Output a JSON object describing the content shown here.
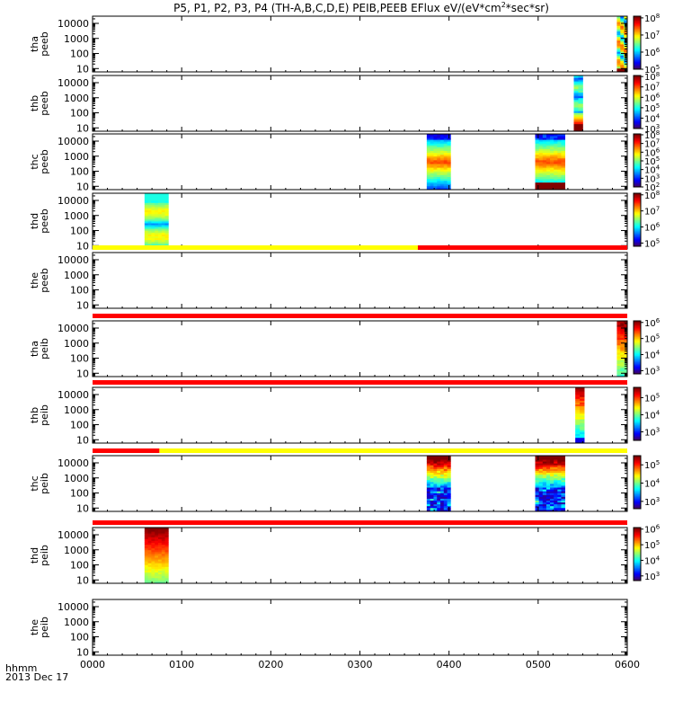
{
  "chart_data": {
    "type": "heatmap",
    "title": "P5, P1, P2, P3, P4 (TH-A,B,C,D,E) PEIB,PEEB EFlux eV/(eV*cm",
    "title_sup": "2",
    "title_tail": "*sec*sr)",
    "xaxis": {
      "label_line1": "hhmm",
      "label_line2": "2013 Dec 17",
      "ticks": [
        "0000",
        "0100",
        "0200",
        "0300",
        "0400",
        "0500",
        "0600"
      ],
      "range_minutes": [
        0,
        360
      ]
    },
    "yaxis": {
      "scale": "log",
      "ticks": [
        "10",
        "100",
        "1000",
        "10000"
      ],
      "range": [
        6,
        30000
      ]
    },
    "panels": [
      {
        "label1": "tha",
        "label2": "peeb",
        "cbar": [
          "10",
          "10",
          "10",
          "10"
        ],
        "cbar_exp": [
          "8",
          "7",
          "6",
          "5"
        ],
        "cbar_range": [
          5,
          8.1
        ],
        "blocks": [
          {
            "t0": 353,
            "t1": 360,
            "style": "peeb_full"
          }
        ]
      },
      {
        "label1": "thb",
        "label2": "peeb",
        "cbar": [
          "10",
          "10",
          "10",
          "10",
          "10",
          "10"
        ],
        "cbar_exp": [
          "8",
          "7",
          "6",
          "5",
          "4",
          "3"
        ],
        "cbar_range": [
          3,
          8.1
        ],
        "blocks": [
          {
            "t0": 324,
            "t1": 330,
            "style": "peeb_b"
          }
        ]
      },
      {
        "label1": "thc",
        "label2": "peeb",
        "cbar": [
          "10",
          "10",
          "10",
          "10",
          "10",
          "10",
          "10"
        ],
        "cbar_exp": [
          "8",
          "7",
          "6",
          "5",
          "4",
          "3",
          "2"
        ],
        "cbar_range": [
          2,
          8.1
        ],
        "blocks": [
          {
            "t0": 225,
            "t1": 241,
            "style": "peeb_c"
          },
          {
            "t0": 298,
            "t1": 318,
            "style": "peeb_c2"
          }
        ]
      },
      {
        "label1": "thd",
        "label2": "peeb",
        "cbar": [
          "10",
          "10",
          "10",
          "10"
        ],
        "cbar_exp": [
          "8",
          "7",
          "6",
          "5"
        ],
        "cbar_range": [
          4.8,
          8.1
        ],
        "blocks": [
          {
            "t0": 35,
            "t1": 51,
            "style": "peeb_d"
          }
        ]
      },
      {
        "label1": "the",
        "label2": "peeb",
        "cbar": [],
        "cbar_exp": [],
        "cbar_range": [
          0,
          1
        ],
        "blocks": []
      },
      {
        "label1": "tha",
        "label2": "peib",
        "cbar": [
          "10",
          "10",
          "10",
          "10"
        ],
        "cbar_exp": [
          "6",
          "5",
          "4",
          "3"
        ],
        "cbar_range": [
          2.8,
          6.1
        ],
        "blocks": [
          {
            "t0": 353,
            "t1": 360,
            "style": "peib_a"
          }
        ]
      },
      {
        "label1": "thb",
        "label2": "peib",
        "cbar": [
          "10",
          "10",
          "10"
        ],
        "cbar_exp": [
          "5",
          "4",
          "3"
        ],
        "cbar_range": [
          2.5,
          5.6
        ],
        "blocks": [
          {
            "t0": 325,
            "t1": 331,
            "style": "peib_b"
          }
        ]
      },
      {
        "label1": "thc",
        "label2": "peib",
        "cbar": [
          "10",
          "10",
          "10"
        ],
        "cbar_exp": [
          "5",
          "4",
          "3"
        ],
        "cbar_range": [
          2.6,
          5.5
        ],
        "blocks": [
          {
            "t0": 225,
            "t1": 241,
            "style": "peib_c"
          },
          {
            "t0": 298,
            "t1": 318,
            "style": "peib_c"
          }
        ]
      },
      {
        "label1": "thd",
        "label2": "peib",
        "cbar": [
          "10",
          "10",
          "10",
          "10"
        ],
        "cbar_exp": [
          "6",
          "5",
          "4",
          "3"
        ],
        "cbar_range": [
          2.7,
          6.1
        ],
        "blocks": [
          {
            "t0": 35,
            "t1": 51,
            "style": "peib_d"
          }
        ]
      },
      {
        "label1": "the",
        "label2": "peib",
        "cbar": [],
        "cbar_exp": [],
        "cbar_range": [
          0,
          1
        ],
        "blocks": []
      }
    ],
    "mode_bars": [
      {
        "after_panel": 4,
        "segments": [
          {
            "t0": 0,
            "t1": 219,
            "color": "#ffff00"
          },
          {
            "t0": 219,
            "t1": 360,
            "color": "#ff0000"
          }
        ]
      },
      {
        "after_panel": 5,
        "segments": [
          {
            "t0": 0,
            "t1": 360,
            "color": "#ff0000"
          }
        ]
      },
      {
        "after_panel": 6,
        "segments": [
          {
            "t0": 0,
            "t1": 360,
            "color": "#ff0000"
          }
        ]
      },
      {
        "after_panel": 7,
        "segments": [
          {
            "t0": 0,
            "t1": 45,
            "color": "#ff0000"
          },
          {
            "t0": 45,
            "t1": 360,
            "color": "#ffff00"
          }
        ]
      },
      {
        "after_panel": 8,
        "segments": [
          {
            "t0": 0,
            "t1": 360,
            "color": "#ff0000"
          }
        ]
      }
    ],
    "colors": {
      "background": "#ffffff",
      "missing": "#ffffff",
      "fill_red": "#ff0000",
      "axis": "#000000"
    }
  }
}
